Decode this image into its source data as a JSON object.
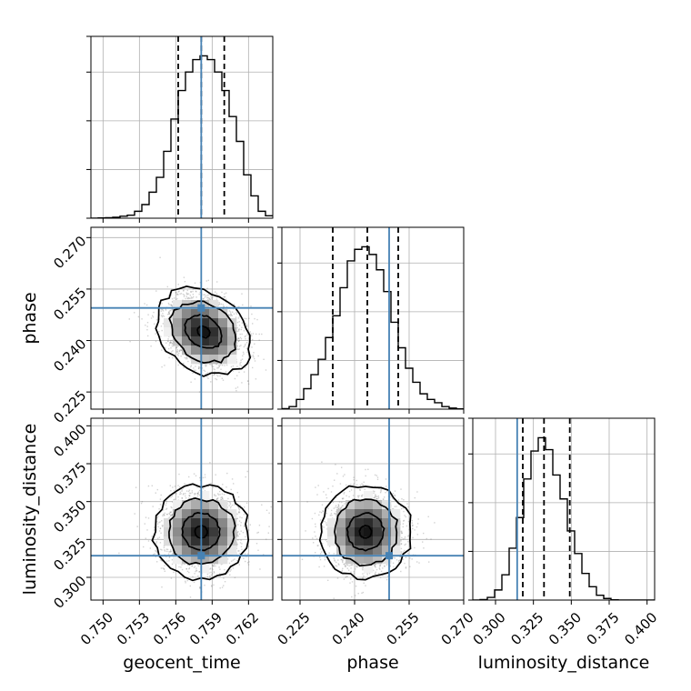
{
  "figure": {
    "title": "",
    "style": {
      "hist_color": "#000000",
      "truth_color": "#4682b4",
      "quantile_color": "#000000",
      "grid": true,
      "grid_color": "#b0b0b0"
    }
  },
  "chart_data": {
    "type": "corner",
    "parameters": [
      "geocent_time",
      "phase",
      "luminosity_distance"
    ],
    "truths": {
      "geocent_time": 0.7581,
      "phase": 0.2495,
      "luminosity_distance": 0.3143
    },
    "quantiles": {
      "geocent_time": [
        0.7562,
        0.7581,
        0.76
      ],
      "phase": [
        0.234,
        0.2435,
        0.252
      ],
      "luminosity_distance": [
        0.318,
        0.332,
        0.349
      ]
    },
    "diagonal": [
      {
        "name": "geocent_time",
        "xlim": [
          0.749,
          0.764
        ],
        "bins": [
          0.749,
          0.7496,
          0.7502,
          0.7508,
          0.7514,
          0.752,
          0.7526,
          0.7532,
          0.7538,
          0.7544,
          0.755,
          0.7556,
          0.7562,
          0.7568,
          0.7574,
          0.758,
          0.7586,
          0.7592,
          0.7598,
          0.7604,
          0.761,
          0.7616,
          0.7622,
          0.7628,
          0.7634,
          0.764
        ],
        "counts": [
          0,
          1,
          2,
          4,
          8,
          12,
          28,
          55,
          105,
          165,
          270,
          400,
          515,
          590,
          640,
          655,
          640,
          590,
          515,
          410,
          310,
          175,
          90,
          28,
          10
        ]
      },
      {
        "name": "phase",
        "xlim": [
          0.22,
          0.27
        ],
        "bins": [
          0.22,
          0.222,
          0.224,
          0.226,
          0.228,
          0.23,
          0.232,
          0.234,
          0.236,
          0.238,
          0.24,
          0.242,
          0.244,
          0.246,
          0.248,
          0.25,
          0.252,
          0.254,
          0.256,
          0.258,
          0.26,
          0.262,
          0.264,
          0.266,
          0.268,
          0.27
        ],
        "counts": [
          2,
          10,
          38,
          80,
          135,
          195,
          280,
          365,
          475,
          580,
          625,
          635,
          605,
          545,
          460,
          340,
          240,
          160,
          105,
          60,
          38,
          25,
          10,
          4,
          1
        ]
      },
      {
        "name": "luminosity_distance",
        "xlim": [
          0.285,
          0.405
        ],
        "bins": [
          0.285,
          0.2898,
          0.2946,
          0.2994,
          0.3042,
          0.309,
          0.3138,
          0.3186,
          0.3234,
          0.3282,
          0.333,
          0.3378,
          0.3426,
          0.3474,
          0.3522,
          0.357,
          0.3618,
          0.3666,
          0.3714,
          0.3762,
          0.381,
          0.3858,
          0.3906,
          0.3954,
          0.4002,
          0.405
        ],
        "counts": [
          0,
          2,
          10,
          38,
          95,
          195,
          310,
          455,
          560,
          610,
          565,
          470,
          380,
          260,
          175,
          100,
          50,
          18,
          6,
          1,
          0,
          0,
          0,
          0,
          0
        ]
      }
    ],
    "pairs": [
      {
        "x": "geocent_time",
        "y": "phase",
        "xlim": [
          0.749,
          0.764
        ],
        "ylim": [
          0.22,
          0.273
        ],
        "center": [
          0.7583,
          0.2425
        ],
        "sigma": [
          0.0017,
          0.0055
        ],
        "rho": -0.25
      },
      {
        "x": "geocent_time",
        "y": "luminosity_distance",
        "xlim": [
          0.749,
          0.764
        ],
        "ylim": [
          0.285,
          0.405
        ],
        "center": [
          0.7581,
          0.33
        ],
        "sigma": [
          0.0017,
          0.0135
        ],
        "rho": 0.0
      },
      {
        "x": "phase",
        "y": "luminosity_distance",
        "xlim": [
          0.22,
          0.27
        ],
        "ylim": [
          0.285,
          0.405
        ],
        "center": [
          0.243,
          0.33
        ],
        "sigma": [
          0.0055,
          0.0135
        ],
        "rho": 0.0
      }
    ],
    "ticks": {
      "geocent_time": {
        "values": [
          0.75,
          0.753,
          0.756,
          0.759,
          0.762
        ],
        "labels": [
          "0.750",
          "0.753",
          "0.756",
          "0.759",
          "0.762"
        ]
      },
      "phase_x": {
        "values": [
          0.225,
          0.24,
          0.255,
          0.27
        ],
        "labels": [
          "0.225",
          "0.240",
          "0.255",
          "0.270"
        ]
      },
      "phase_y": {
        "values": [
          0.225,
          0.24,
          0.255,
          0.27
        ],
        "labels": [
          "0.225",
          "0.240",
          "0.255",
          "0.270"
        ]
      },
      "luminosity_distance_x": {
        "values": [
          0.3,
          0.325,
          0.35,
          0.375,
          0.4
        ],
        "labels": [
          "0.300",
          "0.325",
          "0.350",
          "0.375",
          "0.400"
        ]
      },
      "luminosity_distance_y": {
        "values": [
          0.3,
          0.325,
          0.35,
          0.375,
          0.4
        ],
        "labels": [
          "0.300",
          "0.325",
          "0.350",
          "0.375",
          "0.400"
        ]
      }
    },
    "axis_labels": {
      "x": [
        "geocent_time",
        "phase",
        "luminosity_distance"
      ],
      "y": [
        "phase",
        "luminosity_distance"
      ]
    }
  }
}
